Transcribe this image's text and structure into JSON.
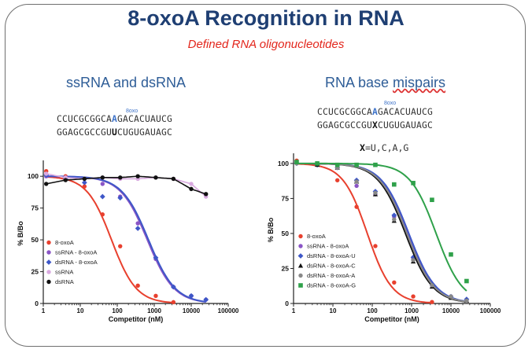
{
  "title": "8-oxoA Recognition in RNA",
  "subtitle": "Defined RNA oligonucleotides",
  "left_panel": {
    "heading": "ssRNA and dsRNA",
    "oxo_label": "8oxo",
    "seq_top": [
      "CCUCGCGGCA",
      "A",
      "GACACUAUCG"
    ],
    "seq_bottom": [
      "GGAGCGCCGU",
      "U",
      "CUGUGAUAGC"
    ]
  },
  "right_panel": {
    "heading_a": "RNA base ",
    "heading_b": "mispairs",
    "oxo_label": "8oxo",
    "seq_top": [
      "CCUCGCGGCA",
      "A",
      "GACACUAUCG"
    ],
    "seq_bottom": [
      "GGAGCGCCGU",
      "X",
      "CUGUGAUAGC"
    ],
    "x_def_bold": "X",
    "x_def_rest": "=U,C,A,G"
  },
  "chart_data": [
    {
      "type": "scatter",
      "title": "",
      "xlabel": "Competitor (nM)",
      "ylabel": "% B/Bo",
      "xscale": "log",
      "xlim": [
        1,
        100000
      ],
      "ylim": [
        0,
        110
      ],
      "xticks": [
        "1",
        "10",
        "100",
        "1000",
        "10000",
        "100000"
      ],
      "yticks": [
        "0",
        "25",
        "50",
        "75",
        "100"
      ],
      "legend_position": "bottom-left",
      "series": [
        {
          "name": "8-oxoA",
          "color": "#e8402e",
          "marker": "circle",
          "ic50": 70,
          "hill": 1.3,
          "x": [
            1.2,
            4,
            13,
            40,
            120,
            360,
            1100,
            3300
          ],
          "y": [
            104,
            100,
            92,
            70,
            45,
            14,
            6,
            1
          ]
        },
        {
          "name": "ssRNA - 8-oxoA",
          "color": "#8a55c6",
          "marker": "circle",
          "ic50": 650,
          "hill": 1.2,
          "x": [
            1.2,
            4,
            13,
            40,
            120,
            360,
            1100,
            3300,
            10000,
            25000
          ],
          "y": [
            100,
            99,
            98,
            94,
            84,
            63,
            35,
            13,
            6,
            3
          ]
        },
        {
          "name": "dsRNA - 8-oxoA",
          "color": "#3e57c8",
          "marker": "diamond",
          "ic50": 700,
          "hill": 1.2,
          "x": [
            1.2,
            4,
            13,
            40,
            120,
            360,
            1100,
            3300,
            10000,
            25000
          ],
          "y": [
            101,
            98,
            95,
            84,
            83,
            59,
            36,
            13,
            6,
            3
          ]
        },
        {
          "name": "ssRNA",
          "color": "#d9a9e0",
          "marker": "circle",
          "ic50": null,
          "hill": null,
          "x": [
            1.2,
            4,
            13,
            40,
            120,
            360,
            1100,
            3300,
            10000,
            25000
          ],
          "y": [
            102,
            99,
            98,
            99,
            98,
            98,
            99,
            98,
            94,
            84
          ]
        },
        {
          "name": "dsRNA",
          "color": "#111111",
          "marker": "circle",
          "ic50": null,
          "hill": null,
          "x": [
            1.2,
            4,
            13,
            40,
            120,
            360,
            1100,
            3300,
            10000,
            25000
          ],
          "y": [
            94,
            97,
            98,
            99,
            99,
            100,
            99,
            98,
            90,
            86
          ]
        }
      ]
    },
    {
      "type": "scatter",
      "title": "",
      "xlabel": "Competitor (nM)",
      "ylabel": "% B/Bo",
      "xscale": "log",
      "xlim": [
        1,
        100000
      ],
      "ylim": [
        0,
        105
      ],
      "xticks": [
        "1",
        "10",
        "100",
        "1000",
        "10000",
        "100000"
      ],
      "yticks": [
        "0",
        "25",
        "50",
        "75",
        "100"
      ],
      "legend_position": "bottom-left",
      "series": [
        {
          "name": "8-oxoA",
          "color": "#e8402e",
          "marker": "circle",
          "ic50": 75,
          "hill": 1.4,
          "x": [
            1.2,
            4,
            13,
            40,
            120,
            360,
            1100,
            3300
          ],
          "y": [
            102,
            99,
            88,
            69,
            41,
            15,
            5,
            1
          ]
        },
        {
          "name": "ssRNA - 8-oxoA",
          "color": "#8a55c6",
          "marker": "circle",
          "ic50": 800,
          "hill": 1.25,
          "x": [
            1.2,
            4,
            13,
            40,
            120,
            360,
            1100,
            3300,
            10000,
            25000
          ],
          "y": [
            101,
            100,
            97,
            84,
            78,
            62,
            32,
            13,
            5,
            2
          ]
        },
        {
          "name": "dsRNA - 8-oxoA-U",
          "color": "#3e57c8",
          "marker": "diamond",
          "ic50": 850,
          "hill": 1.25,
          "x": [
            1.2,
            4,
            13,
            40,
            120,
            360,
            1100,
            3300,
            10000,
            25000
          ],
          "y": [
            100,
            99,
            97,
            88,
            80,
            63,
            33,
            14,
            5,
            3
          ]
        },
        {
          "name": "dsRNA - 8-oxoA-C",
          "color": "#111111",
          "marker": "triangle",
          "ic50": 700,
          "hill": 1.25,
          "x": [
            1.2,
            4,
            13,
            40,
            120,
            360,
            1100,
            3300,
            10000,
            25000
          ],
          "y": [
            101,
            99,
            97,
            87,
            78,
            59,
            30,
            12,
            4,
            2
          ]
        },
        {
          "name": "dsRNA - 8-oxoA-A",
          "color": "#888888",
          "marker": "circle",
          "ic50": 760,
          "hill": 1.25,
          "x": [
            1.2,
            4,
            13,
            40,
            120,
            360,
            1100,
            3300,
            10000,
            25000
          ],
          "y": [
            100,
            100,
            97,
            87,
            79,
            60,
            31,
            13,
            5,
            2
          ]
        },
        {
          "name": "dsRNA - 8-oxoA-G",
          "color": "#2fa14a",
          "marker": "square",
          "ic50": 4200,
          "hill": 1.3,
          "x": [
            1.2,
            4,
            13,
            40,
            120,
            360,
            1100,
            3300,
            10000,
            25000
          ],
          "y": [
            101,
            100,
            99,
            99,
            99,
            85,
            86,
            74,
            35,
            16
          ]
        }
      ]
    }
  ]
}
